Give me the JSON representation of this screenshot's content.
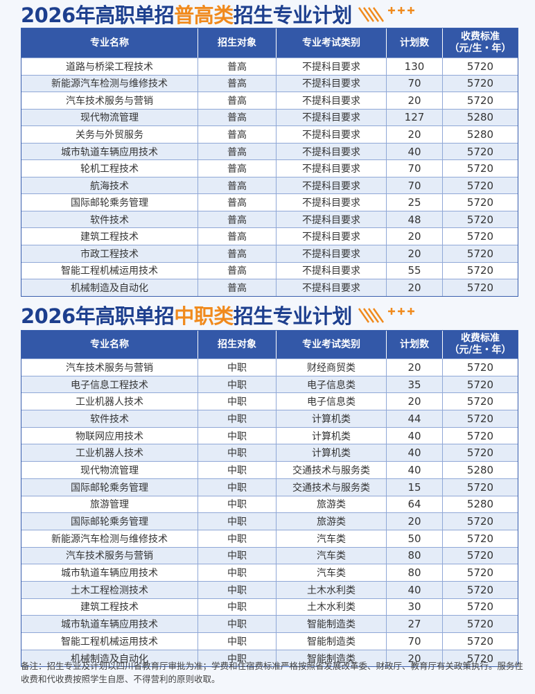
{
  "sections": [
    {
      "title": [
        "2026年高职单招",
        "普高类",
        "招生专业计划"
      ],
      "table": {
        "headers": [
          "专业名称",
          "招生对象",
          "专业考试类别",
          "计划数",
          [
            "收费标准",
            "（元/生・年）"
          ]
        ],
        "rows": [
          [
            "道路与桥梁工程技术",
            "普高",
            "不提科目要求",
            130,
            5720
          ],
          [
            "新能源汽车检测与维修技术",
            "普高",
            "不提科目要求",
            70,
            5720
          ],
          [
            "汽车技术服务与营销",
            "普高",
            "不提科目要求",
            20,
            5720
          ],
          [
            "现代物流管理",
            "普高",
            "不提科目要求",
            127,
            5280
          ],
          [
            "关务与外贸服务",
            "普高",
            "不提科目要求",
            20,
            5280
          ],
          [
            "城市轨道车辆应用技术",
            "普高",
            "不提科目要求",
            40,
            5720
          ],
          [
            "轮机工程技术",
            "普高",
            "不提科目要求",
            70,
            5720
          ],
          [
            "航海技术",
            "普高",
            "不提科目要求",
            70,
            5720
          ],
          [
            "国际邮轮乘务管理",
            "普高",
            "不提科目要求",
            25,
            5720
          ],
          [
            "软件技术",
            "普高",
            "不提科目要求",
            48,
            5720
          ],
          [
            "建筑工程技术",
            "普高",
            "不提科目要求",
            20,
            5720
          ],
          [
            "市政工程技术",
            "普高",
            "不提科目要求",
            20,
            5720
          ],
          [
            "智能工程机械运用技术",
            "普高",
            "不提科目要求",
            55,
            5720
          ],
          [
            "机械制造及自动化",
            "普高",
            "不提科目要求",
            20,
            5720
          ]
        ]
      }
    },
    {
      "title": [
        "2026年高职单招",
        "中职类",
        "招生专业计划"
      ],
      "table": {
        "headers": [
          "专业名称",
          "招生对象",
          "专业考试类别",
          "计划数",
          [
            "收费标准",
            "（元/生・年）"
          ]
        ],
        "rows": [
          [
            "汽车技术服务与营销",
            "中职",
            "财经商贸类",
            20,
            5720
          ],
          [
            "电子信息工程技术",
            "中职",
            "电子信息类",
            35,
            5720
          ],
          [
            "工业机器人技术",
            "中职",
            "电子信息类",
            20,
            5720
          ],
          [
            "软件技术",
            "中职",
            "计算机类",
            44,
            5720
          ],
          [
            "物联网应用技术",
            "中职",
            "计算机类",
            40,
            5720
          ],
          [
            "工业机器人技术",
            "中职",
            "计算机类",
            40,
            5720
          ],
          [
            "现代物流管理",
            "中职",
            "交通技术与服务类",
            40,
            5280
          ],
          [
            "国际邮轮乘务管理",
            "中职",
            "交通技术与服务类",
            15,
            5720
          ],
          [
            "旅游管理",
            "中职",
            "旅游类",
            64,
            5280
          ],
          [
            "国际邮轮乘务管理",
            "中职",
            "旅游类",
            20,
            5720
          ],
          [
            "新能源汽车检测与维修技术",
            "中职",
            "汽车类",
            50,
            5720
          ],
          [
            "汽车技术服务与营销",
            "中职",
            "汽车类",
            80,
            5720
          ],
          [
            "城市轨道车辆应用技术",
            "中职",
            "汽车类",
            80,
            5720
          ],
          [
            "土木工程检测技术",
            "中职",
            "土木水利类",
            40,
            5720
          ],
          [
            "建筑工程技术",
            "中职",
            "土木水利类",
            30,
            5720
          ],
          [
            "城市轨道车辆应用技术",
            "中职",
            "智能制造类",
            27,
            5720
          ],
          [
            "智能工程机械运用技术",
            "中职",
            "智能制造类",
            70,
            5720
          ],
          [
            "机械制造及自动化",
            "中职",
            "智能制造类",
            20,
            5720
          ]
        ]
      }
    }
  ],
  "note": "备注：招生专业及计划以四川省教育厅审批为准；学费和住宿费标准严格按照省发展改革委、财政厅、教育厅有关政策执行。服务性收费和代收费按照学生自愿、不得营利的原则收取。"
}
